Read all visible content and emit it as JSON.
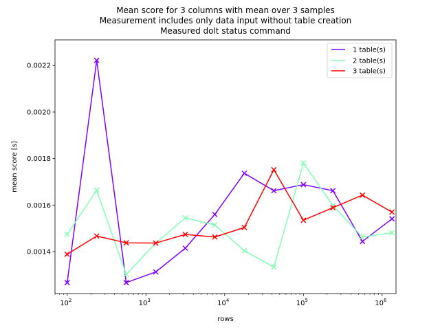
{
  "chart_data": {
    "type": "line",
    "title": [
      "Mean score for 3 columns with mean over 3 samples",
      "Measurement includes only data input without table creation",
      "Measured dolt status command"
    ],
    "xlabel": "rows",
    "ylabel": "mean score [s]",
    "xscale": "log",
    "xlim": [
      70,
      1500000
    ],
    "ylim": [
      0.00122,
      0.00231
    ],
    "x_ticks": [
      100,
      1000,
      10000,
      100000,
      1000000
    ],
    "x_tick_labels": [
      {
        "base": "10",
        "exp": "2"
      },
      {
        "base": "10",
        "exp": "3"
      },
      {
        "base": "10",
        "exp": "4"
      },
      {
        "base": "10",
        "exp": "5"
      },
      {
        "base": "10",
        "exp": "6"
      }
    ],
    "y_ticks": [
      0.0014,
      0.0016,
      0.0018,
      0.002,
      0.0022
    ],
    "y_tick_labels": [
      "0.0014",
      "0.0016",
      "0.0018",
      "0.0020",
      "0.0022"
    ],
    "grid": false,
    "legend_position": "top-right",
    "marker": "x",
    "x": [
      100,
      237,
      562,
      1334,
      3162,
      7499,
      17783,
      42170,
      100000,
      237137,
      562341,
      1333521
    ],
    "series": [
      {
        "name": "1 table(s)",
        "color": "#8000ff",
        "values": [
          0.001267,
          0.002222,
          0.001267,
          0.001313,
          0.001415,
          0.00156,
          0.001737,
          0.001662,
          0.001688,
          0.001662,
          0.001444,
          0.001541
        ]
      },
      {
        "name": "2 table(s)",
        "color": "#80ffb4",
        "values": [
          0.001475,
          0.001664,
          0.001302,
          0.001437,
          0.001545,
          0.001515,
          0.001404,
          0.001334,
          0.001781,
          0.001598,
          0.001463,
          0.001481
        ]
      },
      {
        "name": "3 table(s)",
        "color": "#ff0000",
        "values": [
          0.001389,
          0.001467,
          0.001438,
          0.001437,
          0.001474,
          0.001463,
          0.001504,
          0.001752,
          0.001535,
          0.001589,
          0.001643,
          0.00157
        ]
      }
    ]
  }
}
